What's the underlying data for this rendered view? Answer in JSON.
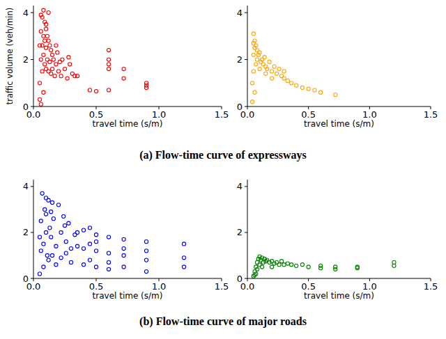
{
  "chart_data": [
    {
      "type": "scatter",
      "x_label": "travel time (s/m)",
      "y_label": "traffic volume (veh/min)",
      "color": "#ff0000",
      "marker": "circle-open",
      "grid": false,
      "xlim": [
        0,
        1.5
      ],
      "ylim": [
        0,
        4.3
      ],
      "xticks": [
        {
          "value": 0,
          "label": "0.0"
        },
        {
          "value": 0.5,
          "label": "0.5"
        },
        {
          "value": 1,
          "label": "1.0"
        },
        {
          "value": 1.5,
          "label": "1.5"
        }
      ],
      "yticks": [
        0,
        2,
        4
      ],
      "x": [
        0.05,
        0.05,
        0.06,
        0.06,
        0.06,
        0.07,
        0.07,
        0.07,
        0.08,
        0.08,
        0.08,
        0.09,
        0.09,
        0.09,
        0.1,
        0.1,
        0.1,
        0.11,
        0.11,
        0.12,
        0.12,
        0.13,
        0.13,
        0.14,
        0.14,
        0.15,
        0.15,
        0.16,
        0.17,
        0.18,
        0.19,
        0.2,
        0.21,
        0.22,
        0.23,
        0.25,
        0.27,
        0.29,
        0.31,
        0.33,
        0.12,
        0.08,
        0.06,
        0.05,
        0.1,
        0.45,
        0.5,
        0.6,
        0.6,
        0.6,
        0.6,
        0.6,
        0.72,
        0.72,
        0.9,
        0.9,
        0.9,
        0.35,
        0.28,
        0.18
      ],
      "values": [
        0.3,
        1.0,
        2.0,
        3.2,
        0.1,
        3.8,
        2.6,
        1.5,
        4.1,
        3.0,
        2.2,
        3.6,
        2.8,
        1.8,
        3.3,
        2.5,
        1.6,
        3.0,
        2.0,
        2.8,
        1.5,
        2.6,
        1.9,
        2.4,
        1.4,
        2.2,
        1.6,
        2.0,
        1.3,
        1.8,
        2.3,
        1.5,
        1.9,
        1.3,
        2.0,
        1.6,
        1.2,
        1.8,
        1.4,
        1.3,
        4.0,
        0.6,
        3.9,
        2.6,
        3.5,
        0.7,
        0.65,
        2.4,
        2.0,
        1.8,
        1.6,
        0.7,
        1.6,
        1.2,
        1.0,
        0.9,
        0.8,
        1.3,
        2.1,
        2.6
      ]
    },
    {
      "type": "scatter",
      "x_label": "travel time (s/m)",
      "color": "#ffa500",
      "marker": "circle-open",
      "grid": false,
      "xlim": [
        0,
        1.5
      ],
      "ylim": [
        0,
        4.3
      ],
      "xticks": [
        {
          "value": 0,
          "label": "0.0"
        },
        {
          "value": 0.5,
          "label": "0.5"
        },
        {
          "value": 1,
          "label": "1.0"
        },
        {
          "value": 1.5,
          "label": "1.5"
        }
      ],
      "yticks": [
        0,
        2,
        4
      ],
      "x": [
        0.04,
        0.04,
        0.05,
        0.05,
        0.05,
        0.06,
        0.06,
        0.07,
        0.07,
        0.08,
        0.08,
        0.09,
        0.1,
        0.11,
        0.12,
        0.13,
        0.14,
        0.15,
        0.16,
        0.18,
        0.2,
        0.22,
        0.24,
        0.26,
        0.28,
        0.3,
        0.33,
        0.36,
        0.4,
        0.45,
        0.5,
        0.55,
        0.6,
        0.72,
        0.05,
        0.06,
        0.1,
        0.2,
        0.3,
        0.15
      ],
      "values": [
        0.2,
        1.0,
        3.1,
        2.2,
        1.5,
        2.8,
        0.6,
        2.6,
        1.8,
        2.4,
        2.0,
        2.2,
        2.3,
        1.9,
        2.0,
        1.8,
        2.1,
        1.7,
        1.6,
        1.9,
        1.5,
        1.7,
        1.4,
        1.6,
        1.3,
        1.2,
        1.1,
        1.0,
        0.9,
        0.8,
        0.75,
        0.7,
        0.6,
        0.5,
        2.7,
        2.5,
        1.6,
        1.2,
        1.5,
        1.4
      ]
    },
    {
      "type": "scatter",
      "x_label": "travel time (s/m)",
      "color": "#0000ff",
      "marker": "circle-open",
      "grid": false,
      "xlim": [
        0,
        1.5
      ],
      "ylim": [
        0,
        4.3
      ],
      "xticks": [
        {
          "value": 0,
          "label": "0.0"
        },
        {
          "value": 0.5,
          "label": "0.5"
        },
        {
          "value": 1,
          "label": "1.0"
        },
        {
          "value": 1.5,
          "label": "1.5"
        }
      ],
      "yticks": [
        0,
        2,
        4
      ],
      "x": [
        0.05,
        0.06,
        0.07,
        0.08,
        0.09,
        0.1,
        0.11,
        0.12,
        0.13,
        0.14,
        0.15,
        0.16,
        0.18,
        0.2,
        0.22,
        0.24,
        0.26,
        0.28,
        0.3,
        0.33,
        0.06,
        0.08,
        0.1,
        0.12,
        0.15,
        0.18,
        0.22,
        0.26,
        0.3,
        0.35,
        0.4,
        0.4,
        0.4,
        0.45,
        0.45,
        0.45,
        0.5,
        0.5,
        0.5,
        0.6,
        0.6,
        0.6,
        0.72,
        0.72,
        0.72,
        0.9,
        0.9,
        0.9,
        1.2,
        1.2,
        1.2,
        0.1,
        0.14,
        0.25,
        0.05,
        0.35,
        0.6,
        0.9,
        0.72,
        0.5
      ],
      "values": [
        0.2,
        2.5,
        3.7,
        1.5,
        3.0,
        2.8,
        1.0,
        3.4,
        2.2,
        1.8,
        3.3,
        2.6,
        1.4,
        3.2,
        2.0,
        2.7,
        1.6,
        2.4,
        1.3,
        1.9,
        1.2,
        0.5,
        2.0,
        0.8,
        1.0,
        0.6,
        0.9,
        1.1,
        0.7,
        1.4,
        2.1,
        1.3,
        0.6,
        2.2,
        1.5,
        0.8,
        1.9,
        1.2,
        0.5,
        1.8,
        1.1,
        0.4,
        1.7,
        1.0,
        0.5,
        1.6,
        1.2,
        0.3,
        1.5,
        0.9,
        0.5,
        3.5,
        2.9,
        2.3,
        1.8,
        2.0,
        0.7,
        0.8,
        1.3,
        1.6
      ]
    },
    {
      "type": "scatter",
      "x_label": "travel time (s/m)",
      "color": "#008000",
      "marker": "circle-open",
      "grid": false,
      "xlim": [
        0,
        1.5
      ],
      "ylim": [
        0,
        4.3
      ],
      "xticks": [
        {
          "value": 0,
          "label": "0.0"
        },
        {
          "value": 0.5,
          "label": "0.5"
        },
        {
          "value": 1,
          "label": "1.0"
        },
        {
          "value": 1.5,
          "label": "1.5"
        }
      ],
      "yticks": [
        0,
        2,
        4
      ],
      "x": [
        0.05,
        0.06,
        0.07,
        0.08,
        0.09,
        0.1,
        0.11,
        0.12,
        0.13,
        0.14,
        0.15,
        0.16,
        0.18,
        0.2,
        0.22,
        0.24,
        0.26,
        0.28,
        0.3,
        0.33,
        0.36,
        0.4,
        0.45,
        0.5,
        0.6,
        0.6,
        0.72,
        0.72,
        0.9,
        0.9,
        1.2,
        1.2,
        0.07,
        0.1,
        0.12,
        0.2,
        0.08,
        0.06
      ],
      "values": [
        0.1,
        0.3,
        0.5,
        0.7,
        0.85,
        0.95,
        0.8,
        0.9,
        0.7,
        0.85,
        0.75,
        0.8,
        0.7,
        0.75,
        0.65,
        0.7,
        0.6,
        0.75,
        0.6,
        0.65,
        0.6,
        0.55,
        0.6,
        0.5,
        0.55,
        0.45,
        0.5,
        0.4,
        0.45,
        0.5,
        0.7,
        0.55,
        0.2,
        0.6,
        0.5,
        0.5,
        0.4,
        0.15
      ]
    }
  ],
  "captions": [
    "(a) Flow-time curve of expressways",
    "(b) Flow-time curve of major roads"
  ]
}
